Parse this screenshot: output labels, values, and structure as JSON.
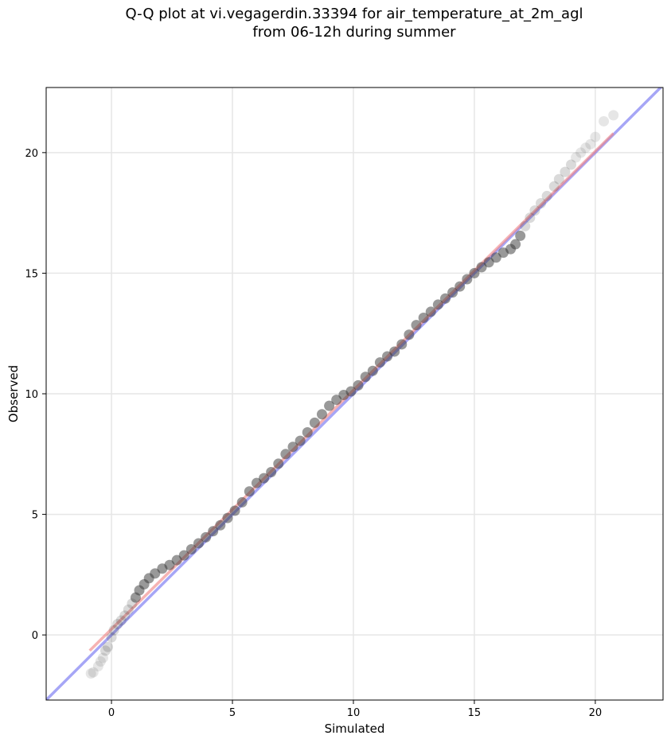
{
  "chart_data": {
    "type": "scatter",
    "title": "Q-Q plot at vi.vegagerdin.33394 for air_temperature_at_2m_agl",
    "subtitle": "from 06-12h during summer",
    "xlabel": "Simulated",
    "ylabel": "Observed",
    "xlim": [
      -2.7,
      22.8
    ],
    "ylim": [
      -2.7,
      22.7
    ],
    "xticks": [
      0,
      5,
      10,
      15,
      20
    ],
    "yticks": [
      0,
      5,
      10,
      15,
      20
    ],
    "grid": true,
    "legend": "none",
    "quantile_points": [
      [
        -0.85,
        -1.6
      ],
      [
        -0.75,
        -1.55
      ],
      [
        -0.55,
        -1.3
      ],
      [
        -0.45,
        -1.1
      ],
      [
        -0.35,
        -0.95
      ],
      [
        -0.25,
        -0.65
      ],
      [
        -0.15,
        -0.5
      ],
      [
        0.0,
        -0.1
      ],
      [
        0.1,
        0.2
      ],
      [
        0.25,
        0.45
      ],
      [
        0.4,
        0.6
      ],
      [
        0.55,
        0.8
      ],
      [
        0.7,
        1.05
      ],
      [
        0.85,
        1.3
      ],
      [
        1.0,
        1.55
      ],
      [
        1.15,
        1.85
      ],
      [
        1.35,
        2.1
      ],
      [
        1.55,
        2.35
      ],
      [
        1.8,
        2.55
      ],
      [
        2.1,
        2.75
      ],
      [
        2.4,
        2.9
      ],
      [
        2.7,
        3.1
      ],
      [
        3.0,
        3.3
      ],
      [
        3.3,
        3.55
      ],
      [
        3.6,
        3.8
      ],
      [
        3.9,
        4.05
      ],
      [
        4.2,
        4.3
      ],
      [
        4.5,
        4.55
      ],
      [
        4.8,
        4.85
      ],
      [
        5.1,
        5.15
      ],
      [
        5.4,
        5.5
      ],
      [
        5.7,
        5.95
      ],
      [
        6.0,
        6.3
      ],
      [
        6.3,
        6.5
      ],
      [
        6.6,
        6.75
      ],
      [
        6.9,
        7.1
      ],
      [
        7.2,
        7.5
      ],
      [
        7.5,
        7.8
      ],
      [
        7.8,
        8.05
      ],
      [
        8.1,
        8.4
      ],
      [
        8.4,
        8.8
      ],
      [
        8.7,
        9.15
      ],
      [
        9.0,
        9.5
      ],
      [
        9.3,
        9.75
      ],
      [
        9.6,
        9.95
      ],
      [
        9.9,
        10.1
      ],
      [
        10.2,
        10.35
      ],
      [
        10.5,
        10.7
      ],
      [
        10.8,
        10.95
      ],
      [
        11.1,
        11.3
      ],
      [
        11.4,
        11.55
      ],
      [
        11.7,
        11.75
      ],
      [
        12.0,
        12.05
      ],
      [
        12.3,
        12.45
      ],
      [
        12.6,
        12.85
      ],
      [
        12.9,
        13.15
      ],
      [
        13.2,
        13.4
      ],
      [
        13.5,
        13.7
      ],
      [
        13.8,
        13.95
      ],
      [
        14.1,
        14.2
      ],
      [
        14.4,
        14.45
      ],
      [
        14.7,
        14.75
      ],
      [
        15.0,
        15.0
      ],
      [
        15.3,
        15.25
      ],
      [
        15.6,
        15.45
      ],
      [
        15.9,
        15.65
      ],
      [
        16.2,
        15.85
      ],
      [
        16.5,
        16.0
      ],
      [
        16.7,
        16.2
      ],
      [
        16.9,
        16.55
      ],
      [
        17.1,
        16.95
      ],
      [
        17.3,
        17.3
      ],
      [
        17.5,
        17.6
      ],
      [
        17.75,
        17.9
      ],
      [
        18.0,
        18.2
      ],
      [
        18.3,
        18.6
      ],
      [
        18.5,
        18.9
      ],
      [
        18.75,
        19.2
      ],
      [
        19.0,
        19.5
      ],
      [
        19.2,
        19.8
      ],
      [
        19.4,
        20.0
      ],
      [
        19.6,
        20.2
      ],
      [
        19.8,
        20.35
      ],
      [
        20.0,
        20.65
      ],
      [
        20.35,
        21.3
      ],
      [
        20.75,
        21.55
      ]
    ],
    "reference_lines": [
      {
        "kind": "identity",
        "color": "#6b6bf0",
        "points": [
          [
            -2.7,
            -2.7
          ],
          [
            22.8,
            22.8
          ]
        ]
      },
      {
        "kind": "fit",
        "color": "#f08080",
        "points": [
          [
            -0.9,
            -0.65
          ],
          [
            20.75,
            20.8
          ]
        ]
      }
    ],
    "point_color": "#333333"
  }
}
